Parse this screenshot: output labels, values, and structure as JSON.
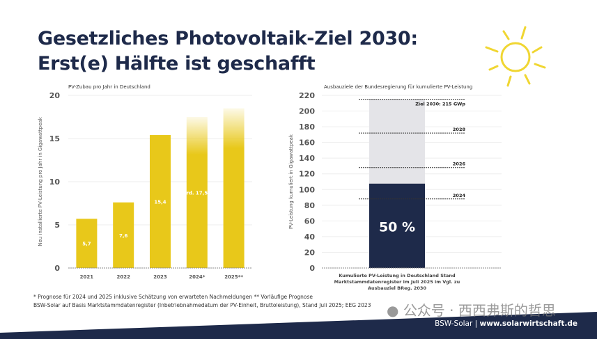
{
  "title_line1": "Gesetzliches Photovoltaik-Ziel 2030:",
  "title_line2": "Erst(e) Hälfte ist geschafft",
  "colors": {
    "navy": "#1e2a4a",
    "yellow": "#e8c81a",
    "light_gray": "#e4e4e8",
    "sun": "#f0d632"
  },
  "icons": {
    "sun": "sun-icon",
    "watermark": "wechat-icon"
  },
  "chart_data": [
    {
      "type": "bar",
      "title": "PV-Zubau pro Jahr in Deutschland",
      "ylabel": "Neu installierte PV-Leistung pro Jahr in Gigawattpeak",
      "xlabel": "",
      "categories": [
        "2021",
        "2022",
        "2023",
        "2024*",
        "2025**"
      ],
      "values": [
        5.7,
        7.6,
        15.4,
        17.5,
        18.5
      ],
      "data_labels": [
        "5,7",
        "7,6",
        "15,4",
        "rd. 17,5",
        ""
      ],
      "ylim": [
        0,
        20
      ],
      "yticks": [
        "0",
        "5",
        "10",
        "15",
        "20"
      ],
      "grid": true,
      "color": "#e8c81a"
    },
    {
      "type": "bar",
      "title": "Ausbauziele der Bundesregierung für kumulierte PV-Leistung",
      "ylabel": "PV-Leistung kumuliert in Gigawattpeak",
      "category": "Kumulierte PV-Leistung in Deutschland Stand Marktstammdatenregister im Juli 2025 im Vgl. zu Ausbauziel BReg. 2030",
      "category_lines": [
        "Kumulierte PV-Leistung in Deutschland Stand",
        "Marktstammdatenregister im Juli 2025 im Vgl. zu",
        "Ausbauziel BReg. 2030"
      ],
      "value": 107.5,
      "target": 215,
      "bar_label": "50 %",
      "targets": [
        {
          "label": "Ziel 2030: 215 GWp",
          "value": 215
        },
        {
          "label": "2028",
          "value": 172
        },
        {
          "label": "2026",
          "value": 128
        },
        {
          "label": "2024",
          "value": 88
        }
      ],
      "ylim": [
        0,
        220
      ],
      "yticks": [
        "0",
        "20",
        "40",
        "60",
        "80",
        "100",
        "120",
        "140",
        "160",
        "180",
        "200",
        "220"
      ],
      "grid": true
    }
  ],
  "footnote1": "* Prognose für 2024 und 2025 inklusive Schätzung von erwarteten Nachmeldungen  ** Vorläufige Prognose",
  "footnote2": "BSW-Solar auf Basis Marktstammdatenregister (Inbetriebnahmedatum der PV-Einheit, Bruttoleistung), Stand Juli 2025; EEG 2023",
  "watermark": "公众号 · 西西弗斯的哲思",
  "brand": "BSW-Solar",
  "website": "www.solarwirtschaft.de"
}
